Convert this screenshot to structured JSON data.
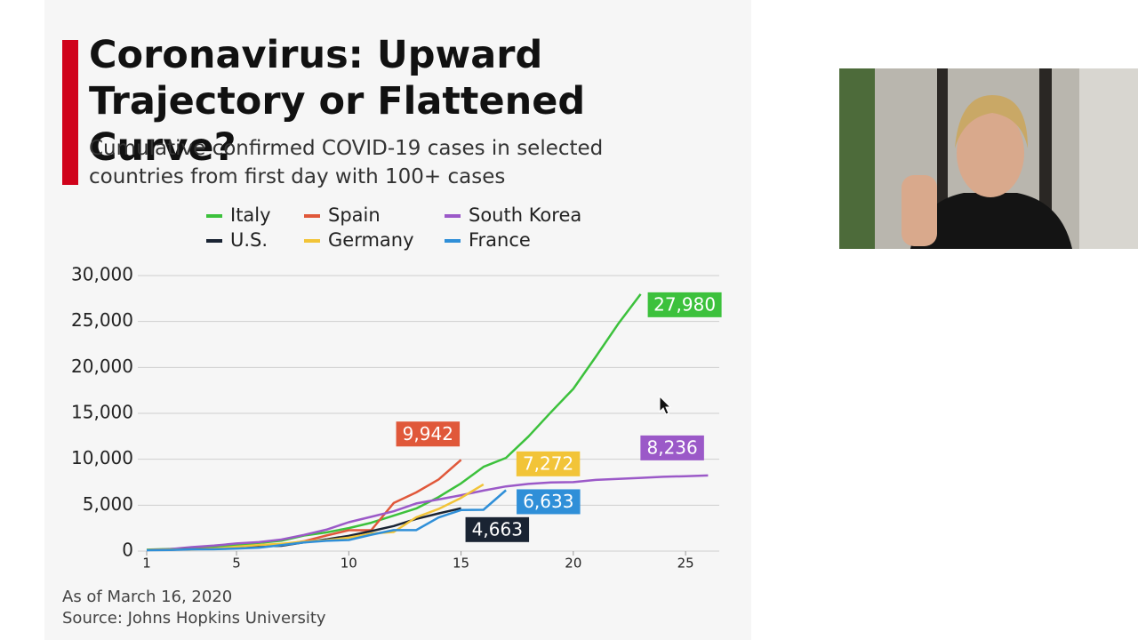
{
  "chart_data": {
    "type": "line",
    "title": "Coronavirus: Upward Trajectory or Flattened Curve?",
    "subtitle": "Cumulative confirmed COVID-19 cases in selected countries from first day with 100+ cases",
    "note": "As of March 16, 2020",
    "source": "Source: Johns Hopkins University",
    "x": [
      1,
      2,
      3,
      4,
      5,
      6,
      7,
      8,
      9,
      10,
      11,
      12,
      13,
      14,
      15,
      16,
      17,
      18,
      19,
      20,
      21,
      22,
      23,
      24,
      25,
      26
    ],
    "xlim": [
      1,
      26.5
    ],
    "xticks": [
      1,
      5,
      10,
      15,
      20,
      25
    ],
    "ylim": [
      0,
      30000
    ],
    "yticks": [
      0,
      {
        "value": 5000,
        "label": "5,000"
      },
      {
        "value": 10000,
        "label": "10,000"
      },
      {
        "value": 15000,
        "label": "15,000"
      },
      {
        "value": 20000,
        "label": "20,000"
      },
      {
        "value": 25000,
        "label": "25,000"
      },
      {
        "value": 30000,
        "label": "30,000"
      }
    ],
    "grid": true,
    "series": [
      {
        "name": "Italy",
        "color": "#3cc13c",
        "values": [
          155,
          229,
          322,
          453,
          655,
          888,
          1128,
          1694,
          2036,
          2502,
          3089,
          3858,
          4636,
          5883,
          7375,
          9172,
          10149,
          12462,
          15113,
          17660,
          21157,
          24747,
          27980,
          null,
          null,
          null
        ],
        "value_labels": [
          null,
          null,
          null,
          null,
          null,
          null,
          null,
          null,
          null,
          null,
          null,
          null,
          null,
          null,
          null,
          null,
          null,
          null,
          null,
          null,
          null,
          null,
          "27,980",
          null,
          null,
          null
        ]
      },
      {
        "name": "Spain",
        "color": "#e0583a",
        "values": [
          120,
          165,
          222,
          259,
          400,
          500,
          673,
          1073,
          1695,
          2277,
          2277,
          5232,
          6391,
          7798,
          9942,
          null,
          null,
          null,
          null,
          null,
          null,
          null,
          null,
          null,
          null,
          null
        ],
        "value_labels": [
          null,
          null,
          null,
          null,
          null,
          null,
          null,
          null,
          null,
          null,
          null,
          null,
          null,
          null,
          "9,942",
          null,
          null,
          null,
          null,
          null,
          null,
          null,
          null,
          null,
          null,
          null
        ]
      },
      {
        "name": "South Korea",
        "color": "#9b59c8",
        "values": [
          104,
          204,
          433,
          602,
          833,
          977,
          1261,
          1766,
          2337,
          3150,
          3736,
          4335,
          5186,
          5621,
          6088,
          6593,
          7041,
          7314,
          7478,
          7513,
          7755,
          7869,
          7979,
          8086,
          8162,
          8236
        ],
        "value_labels": [
          null,
          null,
          null,
          null,
          null,
          null,
          null,
          null,
          null,
          null,
          null,
          null,
          null,
          null,
          null,
          null,
          null,
          null,
          null,
          null,
          null,
          null,
          null,
          null,
          null,
          "8,236"
        ]
      },
      {
        "name": "U.S.",
        "color": "#1a2433",
        "values": [
          118,
          149,
          217,
          262,
          402,
          518,
          583,
          959,
          1281,
          1663,
          2179,
          2727,
          3499,
          4100,
          4663,
          null,
          null,
          null,
          null,
          null,
          null,
          null,
          null,
          null,
          null,
          null
        ],
        "value_labels": [
          null,
          null,
          null,
          null,
          null,
          null,
          null,
          null,
          null,
          null,
          null,
          null,
          null,
          null,
          "4,663",
          null,
          null,
          null,
          null,
          null,
          null,
          null,
          null,
          null,
          null,
          null
        ]
      },
      {
        "name": "Germany",
        "color": "#f2c438",
        "values": [
          130,
          159,
          196,
          262,
          482,
          670,
          799,
          1040,
          1176,
          1457,
          1908,
          2078,
          3675,
          4585,
          5795,
          7272,
          null,
          null,
          null,
          null,
          null,
          null,
          null,
          null,
          null,
          null
        ],
        "value_labels": [
          null,
          null,
          null,
          null,
          null,
          null,
          null,
          null,
          null,
          null,
          null,
          null,
          null,
          null,
          null,
          "7,272",
          null,
          null,
          null,
          null,
          null,
          null,
          null,
          null,
          null,
          null
        ]
      },
      {
        "name": "France",
        "color": "#2f8fd8",
        "values": [
          100,
          130,
          191,
          204,
          285,
          377,
          653,
          949,
          1126,
          1209,
          1784,
          2284,
          2281,
          3661,
          4469,
          4499,
          6633,
          null,
          null,
          null,
          null,
          null,
          null,
          null,
          null,
          null
        ],
        "value_labels": [
          null,
          null,
          null,
          null,
          null,
          null,
          null,
          null,
          null,
          null,
          null,
          null,
          null,
          null,
          null,
          null,
          "6,633",
          null,
          null,
          null,
          null,
          null,
          null,
          null,
          null,
          null
        ]
      }
    ]
  }
}
